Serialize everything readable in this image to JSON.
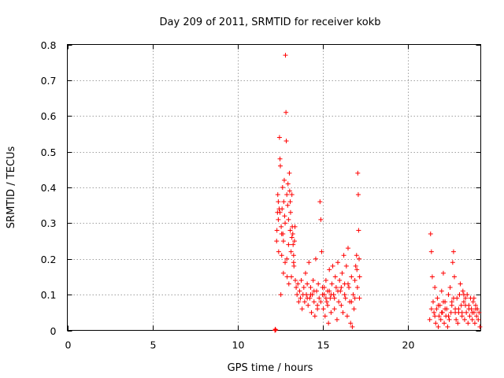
{
  "chart_data": {
    "type": "scatter",
    "title": "Day 209 of 2011, SRMTID for receiver kokb",
    "xlabel": "GPS time / hours",
    "ylabel": "SRMTID / TECUs",
    "xlim": [
      0,
      24.3
    ],
    "ylim": [
      0,
      0.8
    ],
    "xticks": [
      0,
      5,
      10,
      15,
      20
    ],
    "xtick_labels": [
      "0",
      "5",
      "10",
      "15",
      "20"
    ],
    "yticks": [
      0,
      0.1,
      0.2,
      0.3,
      0.4,
      0.5,
      0.6,
      0.7,
      0.8
    ],
    "ytick_labels": [
      "0",
      "0.1",
      "0.2",
      "0.3",
      "0.4",
      "0.5",
      "0.6",
      "0.7",
      "0.8"
    ],
    "grid": true,
    "color": "#ff0000",
    "marker": "plus",
    "series": [
      {
        "name": "SRMTID",
        "points": [
          [
            12.2,
            0.0
          ],
          [
            12.22,
            0.003
          ],
          [
            12.25,
            0.001
          ],
          [
            12.3,
            0.25
          ],
          [
            12.32,
            0.28
          ],
          [
            12.35,
            0.33
          ],
          [
            12.37,
            0.38
          ],
          [
            12.4,
            0.31
          ],
          [
            12.42,
            0.22
          ],
          [
            12.45,
            0.34
          ],
          [
            12.47,
            0.54
          ],
          [
            12.5,
            0.48
          ],
          [
            12.52,
            0.46
          ],
          [
            12.55,
            0.1
          ],
          [
            12.57,
            0.29
          ],
          [
            12.6,
            0.21
          ],
          [
            12.62,
            0.34
          ],
          [
            12.65,
            0.4
          ],
          [
            12.67,
            0.27
          ],
          [
            12.7,
            0.16
          ],
          [
            12.72,
            0.36
          ],
          [
            12.75,
            0.42
          ],
          [
            12.77,
            0.32
          ],
          [
            12.8,
            0.19
          ],
          [
            12.82,
            0.77
          ],
          [
            12.85,
            0.61
          ],
          [
            12.87,
            0.53
          ],
          [
            12.9,
            0.38
          ],
          [
            12.92,
            0.15
          ],
          [
            12.95,
            0.35
          ],
          [
            12.97,
            0.41
          ],
          [
            13.0,
            0.24
          ],
          [
            13.02,
            0.13
          ],
          [
            13.05,
            0.44
          ],
          [
            13.07,
            0.39
          ],
          [
            13.1,
            0.36
          ],
          [
            13.12,
            0.33
          ],
          [
            13.15,
            0.22
          ],
          [
            13.17,
            0.15
          ],
          [
            13.2,
            0.38
          ],
          [
            13.22,
            0.29
          ],
          [
            13.25,
            0.27
          ],
          [
            13.27,
            0.24
          ],
          [
            13.3,
            0.21
          ],
          [
            13.32,
            0.18
          ],
          [
            12.4,
            0.36
          ],
          [
            12.5,
            0.33
          ],
          [
            12.6,
            0.27
          ],
          [
            12.7,
            0.25
          ],
          [
            12.8,
            0.3
          ],
          [
            12.9,
            0.2
          ],
          [
            13.0,
            0.31
          ],
          [
            13.1,
            0.28
          ],
          [
            13.2,
            0.26
          ],
          [
            13.3,
            0.19
          ],
          [
            13.35,
            0.25
          ],
          [
            13.38,
            0.29
          ],
          [
            13.4,
            0.14
          ],
          [
            13.45,
            0.12
          ],
          [
            13.5,
            0.1
          ],
          [
            13.55,
            0.13
          ],
          [
            13.6,
            0.08
          ],
          [
            13.65,
            0.11
          ],
          [
            13.7,
            0.09
          ],
          [
            13.75,
            0.14
          ],
          [
            13.8,
            0.06
          ],
          [
            13.85,
            0.1
          ],
          [
            13.9,
            0.12
          ],
          [
            13.95,
            0.08
          ],
          [
            14.0,
            0.16
          ],
          [
            14.05,
            0.1
          ],
          [
            14.1,
            0.13
          ],
          [
            14.15,
            0.07
          ],
          [
            14.2,
            0.19
          ],
          [
            14.25,
            0.09
          ],
          [
            14.3,
            0.12
          ],
          [
            14.35,
            0.05
          ],
          [
            14.4,
            0.1
          ],
          [
            14.45,
            0.14
          ],
          [
            14.5,
            0.08
          ],
          [
            14.55,
            0.04
          ],
          [
            14.6,
            0.2
          ],
          [
            14.65,
            0.11
          ],
          [
            14.7,
            0.07
          ],
          [
            14.75,
            0.13
          ],
          [
            14.8,
            0.09
          ],
          [
            14.85,
            0.36
          ],
          [
            14.9,
            0.31
          ],
          [
            14.95,
            0.22
          ],
          [
            15.0,
            0.12
          ],
          [
            15.05,
            0.06
          ],
          [
            15.1,
            0.1
          ],
          [
            15.15,
            0.04
          ],
          [
            15.2,
            0.14
          ],
          [
            15.25,
            0.08
          ],
          [
            15.3,
            0.11
          ],
          [
            15.35,
            0.02
          ],
          [
            15.4,
            0.17
          ],
          [
            15.45,
            0.09
          ],
          [
            15.5,
            0.05
          ],
          [
            15.55,
            0.13
          ],
          [
            15.6,
            0.18
          ],
          [
            15.65,
            0.1
          ],
          [
            15.7,
            0.06
          ],
          [
            15.75,
            0.15
          ],
          [
            15.8,
            0.12
          ],
          [
            15.85,
            0.03
          ],
          [
            15.9,
            0.19
          ],
          [
            15.95,
            0.08
          ],
          [
            16.0,
            0.14
          ],
          [
            16.05,
            0.11
          ],
          [
            16.1,
            0.07
          ],
          [
            16.15,
            0.16
          ],
          [
            16.2,
            0.05
          ],
          [
            16.25,
            0.21
          ],
          [
            16.3,
            0.13
          ],
          [
            16.35,
            0.09
          ],
          [
            16.4,
            0.18
          ],
          [
            16.45,
            0.04
          ],
          [
            16.5,
            0.23
          ],
          [
            16.55,
            0.12
          ],
          [
            16.6,
            0.08
          ],
          [
            16.65,
            0.02
          ],
          [
            16.7,
            0.15
          ],
          [
            16.75,
            0.01
          ],
          [
            16.8,
            0.1
          ],
          [
            16.85,
            0.06
          ],
          [
            16.9,
            0.14
          ],
          [
            16.95,
            0.18
          ],
          [
            17.0,
            0.21
          ],
          [
            17.02,
            0.17
          ],
          [
            17.05,
            0.12
          ],
          [
            17.07,
            0.44
          ],
          [
            17.1,
            0.38
          ],
          [
            17.12,
            0.28
          ],
          [
            17.15,
            0.2
          ],
          [
            17.17,
            0.09
          ],
          [
            17.18,
            0.15
          ],
          [
            14.1,
            0.09
          ],
          [
            14.3,
            0.1
          ],
          [
            14.5,
            0.11
          ],
          [
            14.7,
            0.06
          ],
          [
            14.9,
            0.08
          ],
          [
            15.1,
            0.12
          ],
          [
            15.3,
            0.07
          ],
          [
            15.5,
            0.1
          ],
          [
            15.7,
            0.09
          ],
          [
            15.9,
            0.11
          ],
          [
            16.1,
            0.12
          ],
          [
            16.3,
            0.1
          ],
          [
            16.5,
            0.13
          ],
          [
            16.7,
            0.08
          ],
          [
            16.9,
            0.09
          ],
          [
            15.0,
            0.1
          ],
          [
            15.2,
            0.09
          ],
          [
            15.4,
            0.11
          ],
          [
            21.3,
            0.03
          ],
          [
            21.35,
            0.27
          ],
          [
            21.4,
            0.22
          ],
          [
            21.45,
            0.15
          ],
          [
            21.5,
            0.08
          ],
          [
            21.55,
            0.05
          ],
          [
            21.6,
            0.12
          ],
          [
            21.65,
            0.02
          ],
          [
            21.7,
            0.06
          ],
          [
            21.75,
            0.09
          ],
          [
            21.8,
            0.01
          ],
          [
            21.85,
            0.04
          ],
          [
            21.9,
            0.07
          ],
          [
            21.95,
            0.03
          ],
          [
            22.0,
            0.11
          ],
          [
            22.05,
            0.05
          ],
          [
            22.1,
            0.16
          ],
          [
            22.15,
            0.02
          ],
          [
            22.2,
            0.08
          ],
          [
            22.25,
            0.04
          ],
          [
            22.3,
            0.06
          ],
          [
            22.35,
            0.01
          ],
          [
            22.4,
            0.1
          ],
          [
            22.45,
            0.03
          ],
          [
            22.5,
            0.12
          ],
          [
            22.55,
            0.05
          ],
          [
            22.6,
            0.08
          ],
          [
            22.65,
            0.19
          ],
          [
            22.7,
            0.22
          ],
          [
            22.75,
            0.15
          ],
          [
            22.8,
            0.06
          ],
          [
            22.85,
            0.03
          ],
          [
            22.9,
            0.09
          ],
          [
            22.95,
            0.02
          ],
          [
            23.0,
            0.05
          ],
          [
            23.05,
            0.1
          ],
          [
            23.1,
            0.13
          ],
          [
            23.15,
            0.07
          ],
          [
            23.2,
            0.04
          ],
          [
            23.25,
            0.11
          ],
          [
            23.3,
            0.08
          ],
          [
            23.35,
            0.03
          ],
          [
            23.4,
            0.09
          ],
          [
            23.45,
            0.05
          ],
          [
            23.5,
            0.1
          ],
          [
            23.55,
            0.02
          ],
          [
            23.6,
            0.07
          ],
          [
            23.65,
            0.04
          ],
          [
            23.7,
            0.09
          ],
          [
            23.75,
            0.06
          ],
          [
            23.8,
            0.03
          ],
          [
            23.85,
            0.08
          ],
          [
            23.9,
            0.05
          ],
          [
            23.95,
            0.02
          ],
          [
            24.0,
            0.07
          ],
          [
            24.05,
            0.04
          ],
          [
            24.1,
            0.06
          ],
          [
            24.15,
            0.03
          ],
          [
            24.2,
            0.05
          ],
          [
            24.25,
            0.01
          ],
          [
            21.4,
            0.06
          ],
          [
            21.6,
            0.04
          ],
          [
            21.8,
            0.07
          ],
          [
            22.0,
            0.05
          ],
          [
            22.2,
            0.06
          ],
          [
            22.4,
            0.04
          ],
          [
            22.6,
            0.07
          ],
          [
            22.8,
            0.05
          ],
          [
            23.0,
            0.06
          ],
          [
            23.2,
            0.05
          ],
          [
            23.4,
            0.07
          ],
          [
            23.6,
            0.06
          ],
          [
            23.8,
            0.05
          ],
          [
            24.0,
            0.06
          ],
          [
            22.1,
            0.08
          ],
          [
            22.7,
            0.09
          ],
          [
            23.3,
            0.1
          ],
          [
            23.9,
            0.09
          ]
        ]
      }
    ]
  }
}
